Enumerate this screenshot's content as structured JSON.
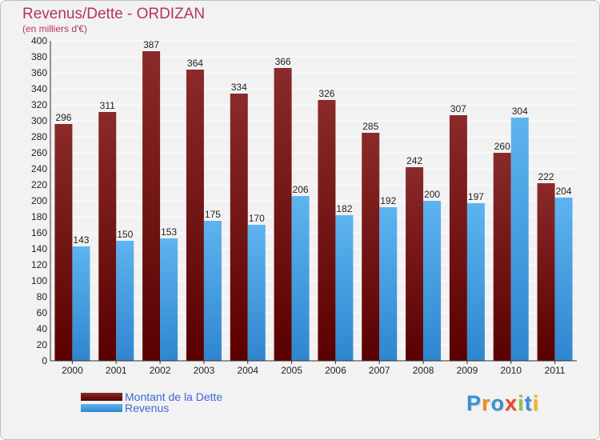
{
  "header": {
    "title": "Revenus/Dette - ORDIZAN",
    "subtitle": "(en milliers d'€)"
  },
  "legend": {
    "items": [
      {
        "label": "Montant de la Dette",
        "color": "#6b0d0d"
      },
      {
        "label": "Revenus",
        "color": "#4ea6e6"
      }
    ]
  },
  "branding": {
    "logo_letters": [
      {
        "char": "P",
        "color": "#3a8fd8"
      },
      {
        "char": "r",
        "color": "#f08a1c"
      },
      {
        "char": "o",
        "color": "#3a8fd8"
      },
      {
        "char": "x",
        "color": "#e8452d"
      },
      {
        "char": "i",
        "color": "#8cc63f"
      },
      {
        "char": "t",
        "color": "#3a8fd8"
      },
      {
        "char": "i",
        "color": "#f0b51c"
      }
    ]
  },
  "chart_data": {
    "type": "bar",
    "title": "Revenus/Dette - ORDIZAN",
    "subtitle": "(en milliers d'€)",
    "categories": [
      "2000",
      "2001",
      "2002",
      "2003",
      "2004",
      "2005",
      "2006",
      "2007",
      "2008",
      "2009",
      "2010",
      "2011"
    ],
    "series": [
      {
        "name": "Montant de la Dette",
        "color": "#7a1616",
        "values": [
          296,
          311,
          387,
          364,
          334,
          366,
          326,
          285,
          242,
          307,
          260,
          222
        ]
      },
      {
        "name": "Revenus",
        "color": "#4ea6e6",
        "values": [
          143,
          150,
          153,
          175,
          170,
          206,
          182,
          192,
          200,
          197,
          304,
          204
        ]
      }
    ],
    "ylim": [
      0,
      400
    ],
    "ytick_step": 20,
    "grid": true,
    "data_labels": true,
    "legend_position": "bottom-left"
  }
}
